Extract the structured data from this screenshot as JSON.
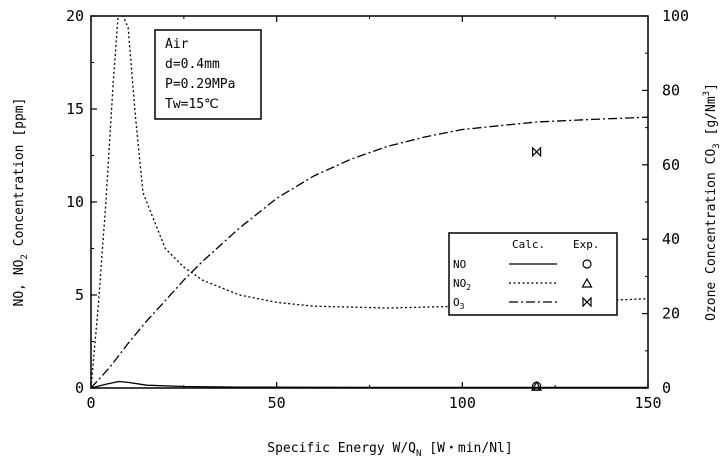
{
  "chart_data": {
    "type": "line",
    "x": {
      "label": "Specific Energy W/Q",
      "label_sub": "N",
      "label_unit": " [W・min/Nl]",
      "lim": [
        0,
        150
      ],
      "ticks": [
        0,
        50,
        100,
        150
      ]
    },
    "y_left": {
      "label_pre": "NO, NO",
      "label_sub": "2",
      "label_post": " Concentration [ppm]",
      "lim": [
        0,
        20
      ],
      "ticks": [
        0,
        5,
        10,
        15,
        20
      ]
    },
    "y_right": {
      "label_pre": "Ozone Concentration CO",
      "label_sub": "3",
      "label_mid": " [g/Nm",
      "label_sup": "3",
      "label_post": "]",
      "lim": [
        0,
        100
      ],
      "ticks": [
        0,
        20,
        40,
        60,
        80,
        100
      ]
    },
    "grid": false,
    "annotation": [
      "Air",
      "d=0.4mm",
      "P=0.29MPa",
      "Tw=15℃"
    ],
    "legend": {
      "position": "right",
      "header_calc": "Calc.",
      "header_exp": "Exp."
    },
    "series": [
      {
        "name": "NO",
        "name_sub": "",
        "axis": "left",
        "dash": "solid",
        "exp_marker": "circle",
        "points": [
          [
            0,
            0
          ],
          [
            4,
            0.2
          ],
          [
            7.5,
            0.35
          ],
          [
            10,
            0.3
          ],
          [
            15,
            0.15
          ],
          [
            25,
            0.08
          ],
          [
            40,
            0.05
          ],
          [
            60,
            0.04
          ],
          [
            100,
            0.03
          ],
          [
            150,
            0.03
          ]
        ]
      },
      {
        "name": "NO",
        "name_sub": "2",
        "axis": "left",
        "dash": "dotted",
        "exp_marker": "triangle",
        "points": [
          [
            0,
            0
          ],
          [
            2,
            4.5
          ],
          [
            4,
            10
          ],
          [
            6,
            16.5
          ],
          [
            7.5,
            20.5
          ],
          [
            10,
            19.4
          ],
          [
            12,
            14.5
          ],
          [
            14,
            10.5
          ],
          [
            17,
            9.0
          ],
          [
            20,
            7.5
          ],
          [
            25,
            6.5
          ],
          [
            30,
            5.8
          ],
          [
            40,
            5.0
          ],
          [
            50,
            4.6
          ],
          [
            60,
            4.4
          ],
          [
            80,
            4.3
          ],
          [
            100,
            4.4
          ],
          [
            125,
            4.6
          ],
          [
            150,
            4.8
          ]
        ]
      },
      {
        "name": "O",
        "name_sub": "3",
        "axis": "right",
        "dash": "dashdot",
        "exp_marker": "bowtie",
        "points": [
          [
            0,
            0
          ],
          [
            5,
            5.5
          ],
          [
            10,
            12
          ],
          [
            15,
            18
          ],
          [
            20,
            23.5
          ],
          [
            25,
            29
          ],
          [
            30,
            34
          ],
          [
            40,
            43
          ],
          [
            50,
            51
          ],
          [
            60,
            57
          ],
          [
            70,
            61.5
          ],
          [
            80,
            65
          ],
          [
            90,
            67.5
          ],
          [
            100,
            69.5
          ],
          [
            110,
            70.5
          ],
          [
            120,
            71.5
          ],
          [
            135,
            72.2
          ],
          [
            150,
            72.8
          ]
        ]
      }
    ],
    "experimental": [
      {
        "series": "NO",
        "x": 120,
        "y": 0.1
      },
      {
        "series": "NO2",
        "x": 120,
        "y": 0.1
      },
      {
        "series": "O3",
        "x": 120,
        "y": 63.5
      }
    ]
  }
}
